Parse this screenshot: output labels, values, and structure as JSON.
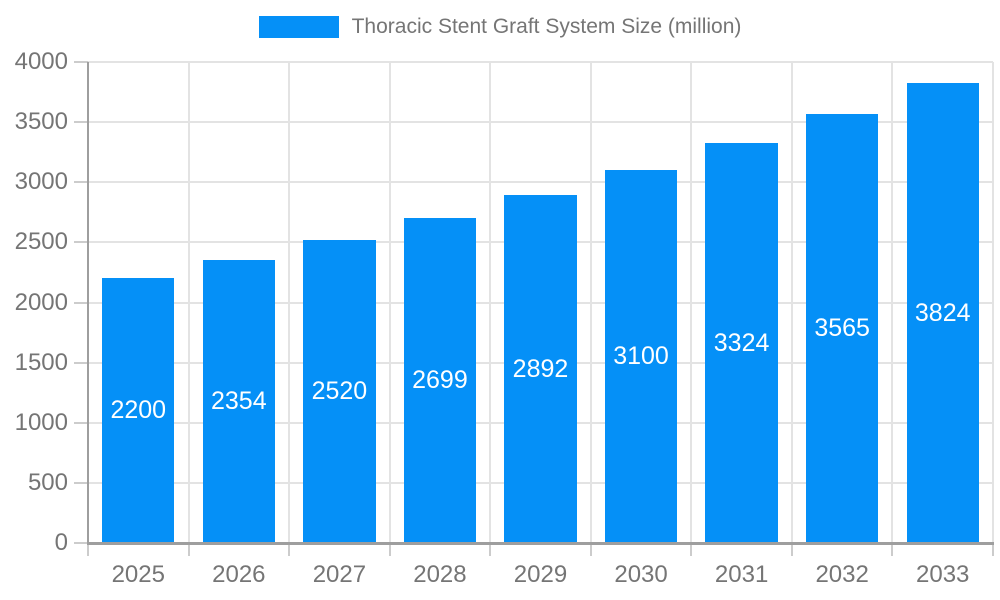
{
  "chart_data": {
    "type": "bar",
    "title": "Thoracic Stent Graft System Size (million)",
    "categories": [
      "2025",
      "2026",
      "2027",
      "2028",
      "2029",
      "2030",
      "2031",
      "2032",
      "2033"
    ],
    "values": [
      2200,
      2354,
      2520,
      2699,
      2892,
      3100,
      3324,
      3565,
      3824
    ],
    "xlabel": "",
    "ylabel": "",
    "ylim": [
      0,
      4000
    ],
    "yticks": [
      0,
      500,
      1000,
      1500,
      2000,
      2500,
      3000,
      3500,
      4000
    ],
    "grid": true,
    "legend_position": "top-center",
    "value_label_position": "inside-center",
    "colors": {
      "bar": "#0590F7",
      "axis_line": "#9e9e9e",
      "gridline": "#e3e3e3",
      "tick": "#cccccc",
      "axis_label": "#757575",
      "legend_text": "#757575",
      "value_label": "#ffffff",
      "background": "#ffffff"
    }
  }
}
